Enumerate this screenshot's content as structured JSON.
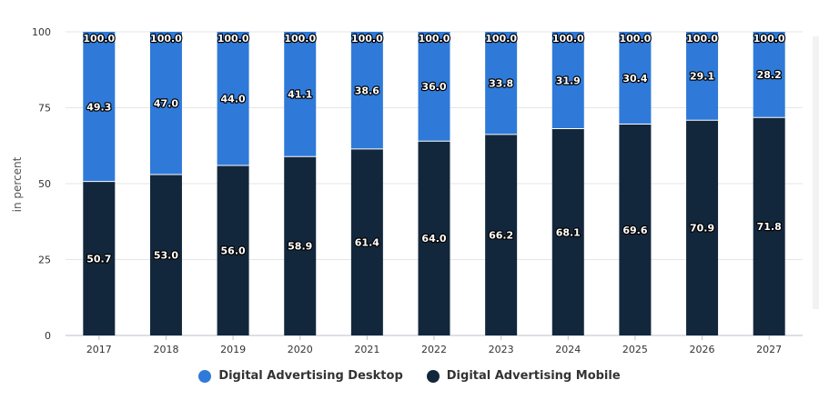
{
  "chart_data": {
    "type": "bar",
    "stacked": true,
    "title": "",
    "xlabel": "",
    "ylabel": "in percent",
    "ylim": [
      0,
      100
    ],
    "yticks": [
      0,
      25,
      50,
      75,
      100
    ],
    "grid": true,
    "legend_position": "bottom",
    "categories": [
      "2017",
      "2018",
      "2019",
      "2020",
      "2021",
      "2022",
      "2023",
      "2024",
      "2025",
      "2026",
      "2027"
    ],
    "series": [
      {
        "name": "Digital Advertising Mobile",
        "color": "#13273c",
        "values": [
          50.7,
          53.0,
          56.0,
          58.9,
          61.4,
          64.0,
          66.2,
          68.1,
          69.6,
          70.9,
          71.8
        ]
      },
      {
        "name": "Digital Advertising Desktop",
        "color": "#2f7ad9",
        "values": [
          49.3,
          47.0,
          44.0,
          41.1,
          38.6,
          36.0,
          33.8,
          31.9,
          30.4,
          29.1,
          28.2
        ]
      }
    ],
    "totals": [
      "100.0",
      "100.0",
      "100.0",
      "100.0",
      "100.0",
      "100.0",
      "100.0",
      "100.0",
      "100.0",
      "100.0",
      "100.0"
    ],
    "mobile_labels": [
      "50.7",
      "53.0",
      "56.0",
      "58.9",
      "61.4",
      "64.0",
      "66.2",
      "68.1",
      "69.6",
      "70.9",
      "71.8"
    ],
    "desktop_labels": [
      "49.3",
      "47.0",
      "44.0",
      "41.1",
      "38.6",
      "36.0",
      "33.8",
      "31.9",
      "30.4",
      "29.1",
      "28.2"
    ]
  },
  "legend": {
    "desktop_label": "Digital Advertising Desktop",
    "mobile_label": "Digital Advertising Mobile"
  }
}
